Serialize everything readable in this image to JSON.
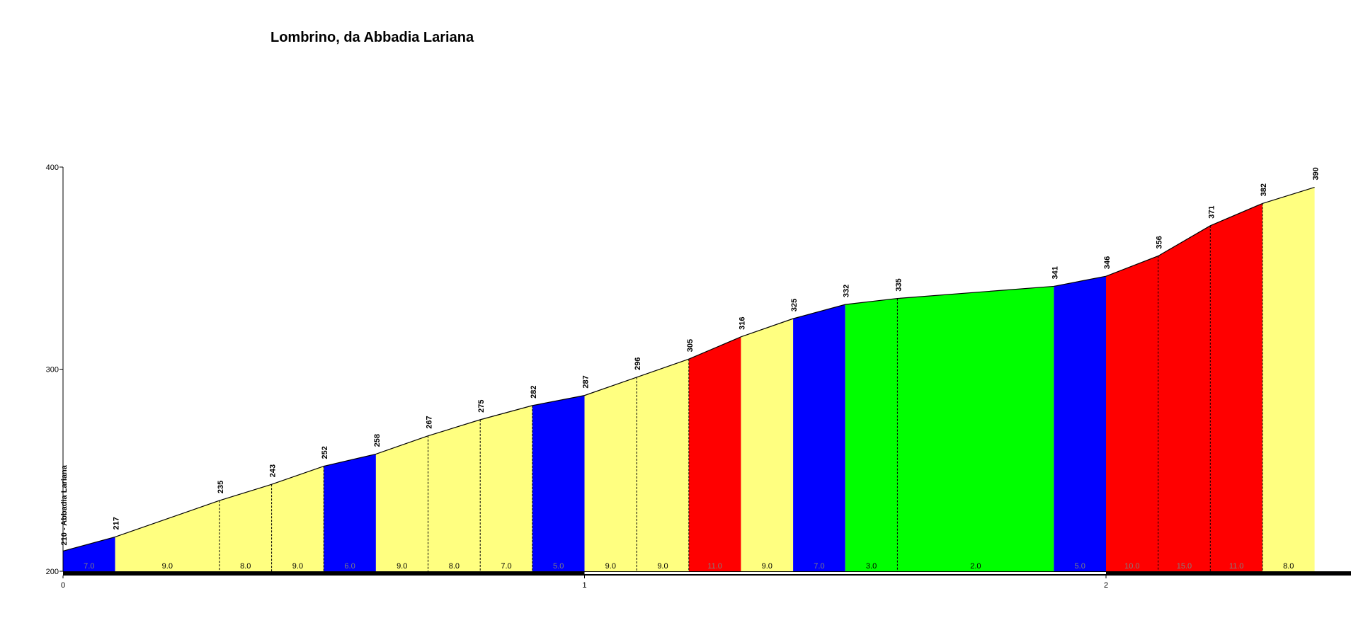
{
  "chart_data": {
    "type": "area",
    "title": "Lombrino, da Abbadia Lariana",
    "xlabel": "",
    "ylabel": "",
    "xlim": [
      0,
      2.4
    ],
    "ylim": [
      200,
      400
    ],
    "x_ticks": [
      "0",
      "1",
      "2"
    ],
    "y_ticks": [
      "200",
      "300",
      "400"
    ],
    "points": [
      {
        "x": 0.0,
        "y": 210,
        "label": "210 - Abbadia Lariana"
      },
      {
        "x": 0.1,
        "y": 217,
        "label": "217"
      },
      {
        "x": 0.3,
        "y": 235,
        "label": "235"
      },
      {
        "x": 0.4,
        "y": 243,
        "label": "243"
      },
      {
        "x": 0.5,
        "y": 252,
        "label": "252"
      },
      {
        "x": 0.6,
        "y": 258,
        "label": "258"
      },
      {
        "x": 0.7,
        "y": 267,
        "label": "267"
      },
      {
        "x": 0.8,
        "y": 275,
        "label": "275"
      },
      {
        "x": 0.9,
        "y": 282,
        "label": "282"
      },
      {
        "x": 1.0,
        "y": 287,
        "label": "287"
      },
      {
        "x": 1.1,
        "y": 296,
        "label": "296"
      },
      {
        "x": 1.2,
        "y": 305,
        "label": "305"
      },
      {
        "x": 1.3,
        "y": 316,
        "label": "316"
      },
      {
        "x": 1.4,
        "y": 325,
        "label": "325"
      },
      {
        "x": 1.5,
        "y": 332,
        "label": "332"
      },
      {
        "x": 1.6,
        "y": 335,
        "label": "335"
      },
      {
        "x": 1.9,
        "y": 341,
        "label": "341"
      },
      {
        "x": 2.0,
        "y": 346,
        "label": "346"
      },
      {
        "x": 2.1,
        "y": 356,
        "label": "356"
      },
      {
        "x": 2.2,
        "y": 371,
        "label": "371"
      },
      {
        "x": 2.3,
        "y": 382,
        "label": "382"
      },
      {
        "x": 2.4,
        "y": 390,
        "label": "390"
      }
    ],
    "segments": [
      {
        "x0": 0.0,
        "x1": 0.1,
        "gradient": "7.0",
        "color": "#0000ff",
        "divider": false
      },
      {
        "x0": 0.1,
        "x1": 0.3,
        "gradient": "9.0",
        "color": "#ffff80",
        "divider": true
      },
      {
        "x0": 0.3,
        "x1": 0.4,
        "gradient": "8.0",
        "color": "#ffff80",
        "divider": true
      },
      {
        "x0": 0.4,
        "x1": 0.5,
        "gradient": "9.0",
        "color": "#ffff80",
        "divider": true
      },
      {
        "x0": 0.5,
        "x1": 0.6,
        "gradient": "6.0",
        "color": "#0000ff",
        "divider": false
      },
      {
        "x0": 0.6,
        "x1": 0.7,
        "gradient": "9.0",
        "color": "#ffff80",
        "divider": true
      },
      {
        "x0": 0.7,
        "x1": 0.8,
        "gradient": "8.0",
        "color": "#ffff80",
        "divider": true
      },
      {
        "x0": 0.8,
        "x1": 0.9,
        "gradient": "7.0",
        "color": "#ffff80",
        "divider": true
      },
      {
        "x0": 0.9,
        "x1": 1.0,
        "gradient": "5.0",
        "color": "#0000ff",
        "divider": false
      },
      {
        "x0": 1.0,
        "x1": 1.1,
        "gradient": "9.0",
        "color": "#ffff80",
        "divider": true
      },
      {
        "x0": 1.1,
        "x1": 1.2,
        "gradient": "9.0",
        "color": "#ffff80",
        "divider": true
      },
      {
        "x0": 1.2,
        "x1": 1.3,
        "gradient": "11.0",
        "color": "#ff0000",
        "divider": false
      },
      {
        "x0": 1.3,
        "x1": 1.4,
        "gradient": "9.0",
        "color": "#ffff80",
        "divider": false
      },
      {
        "x0": 1.4,
        "x1": 1.5,
        "gradient": "7.0",
        "color": "#0000ff",
        "divider": false
      },
      {
        "x0": 1.5,
        "x1": 1.6,
        "gradient": "3.0",
        "color": "#00ff00",
        "divider": true
      },
      {
        "x0": 1.6,
        "x1": 1.9,
        "gradient": "2.0",
        "color": "#00ff00",
        "divider": false
      },
      {
        "x0": 1.9,
        "x1": 2.0,
        "gradient": "5.0",
        "color": "#0000ff",
        "divider": false
      },
      {
        "x0": 2.0,
        "x1": 2.1,
        "gradient": "10.0",
        "color": "#ff0000",
        "divider": true
      },
      {
        "x0": 2.1,
        "x1": 2.2,
        "gradient": "15.0",
        "color": "#ff0000",
        "divider": true
      },
      {
        "x0": 2.2,
        "x1": 2.3,
        "gradient": "11.0",
        "color": "#ff0000",
        "divider": true
      },
      {
        "x0": 2.3,
        "x1": 2.4,
        "gradient": "8.0",
        "color": "#ffff80",
        "divider": false
      }
    ],
    "grid": false,
    "legend": "none"
  }
}
